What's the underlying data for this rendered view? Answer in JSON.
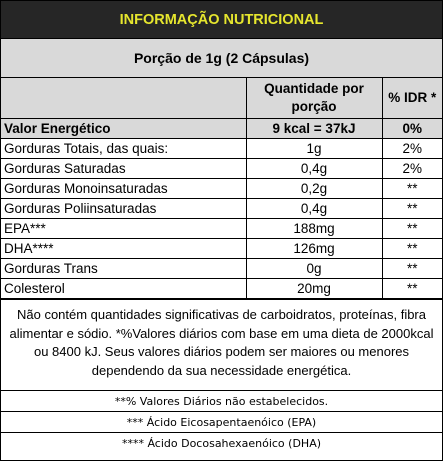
{
  "title": "INFORMAÇÃO NUTRICIONAL",
  "portion": "Porção de 1g (2 Cápsulas)",
  "headers": {
    "col1": "",
    "col2": "Quantidade por porção",
    "col3": "% IDR *"
  },
  "energy": {
    "name": "Valor Energético",
    "amount": "9 kcal = 37kJ",
    "idr": "0%"
  },
  "rows": [
    {
      "name": "Gorduras Totais, das quais:",
      "amount": "1g",
      "idr": "2%"
    },
    {
      "name": "Gorduras Saturadas",
      "amount": "0,4g",
      "idr": "2%"
    },
    {
      "name": "Gorduras Monoinsaturadas",
      "amount": "0,2g",
      "idr": "**"
    },
    {
      "name": "Gorduras Poliinsaturadas",
      "amount": "0,4g",
      "idr": "**"
    },
    {
      "name": "EPA***",
      "amount": "188mg",
      "idr": "**"
    },
    {
      "name": "DHA****",
      "amount": "126mg",
      "idr": "**"
    },
    {
      "name": "Gorduras Trans",
      "amount": "0g",
      "idr": "**"
    },
    {
      "name": "Colesterol",
      "amount": "20mg",
      "idr": "**"
    }
  ],
  "note": "Não contém quantidades significativas de carboidratos, proteínas, fibra alimentar e sódio. *%Valores diários com base em uma dieta de 2000kcal ou 8400 kJ. Seus valores diários podem ser maiores ou menores dependendo da sua necessidade energética.",
  "footnotes": [
    "**% Valores Diários não estabelecidos.",
    "*** Ácido Eicosapentaenóico (EPA)",
    "**** Ácido Docosahexaenóico (DHA)"
  ],
  "colors": {
    "title_bg": "#262626",
    "title_text": "#e6e62e",
    "header_bg": "#d9d9d9"
  }
}
